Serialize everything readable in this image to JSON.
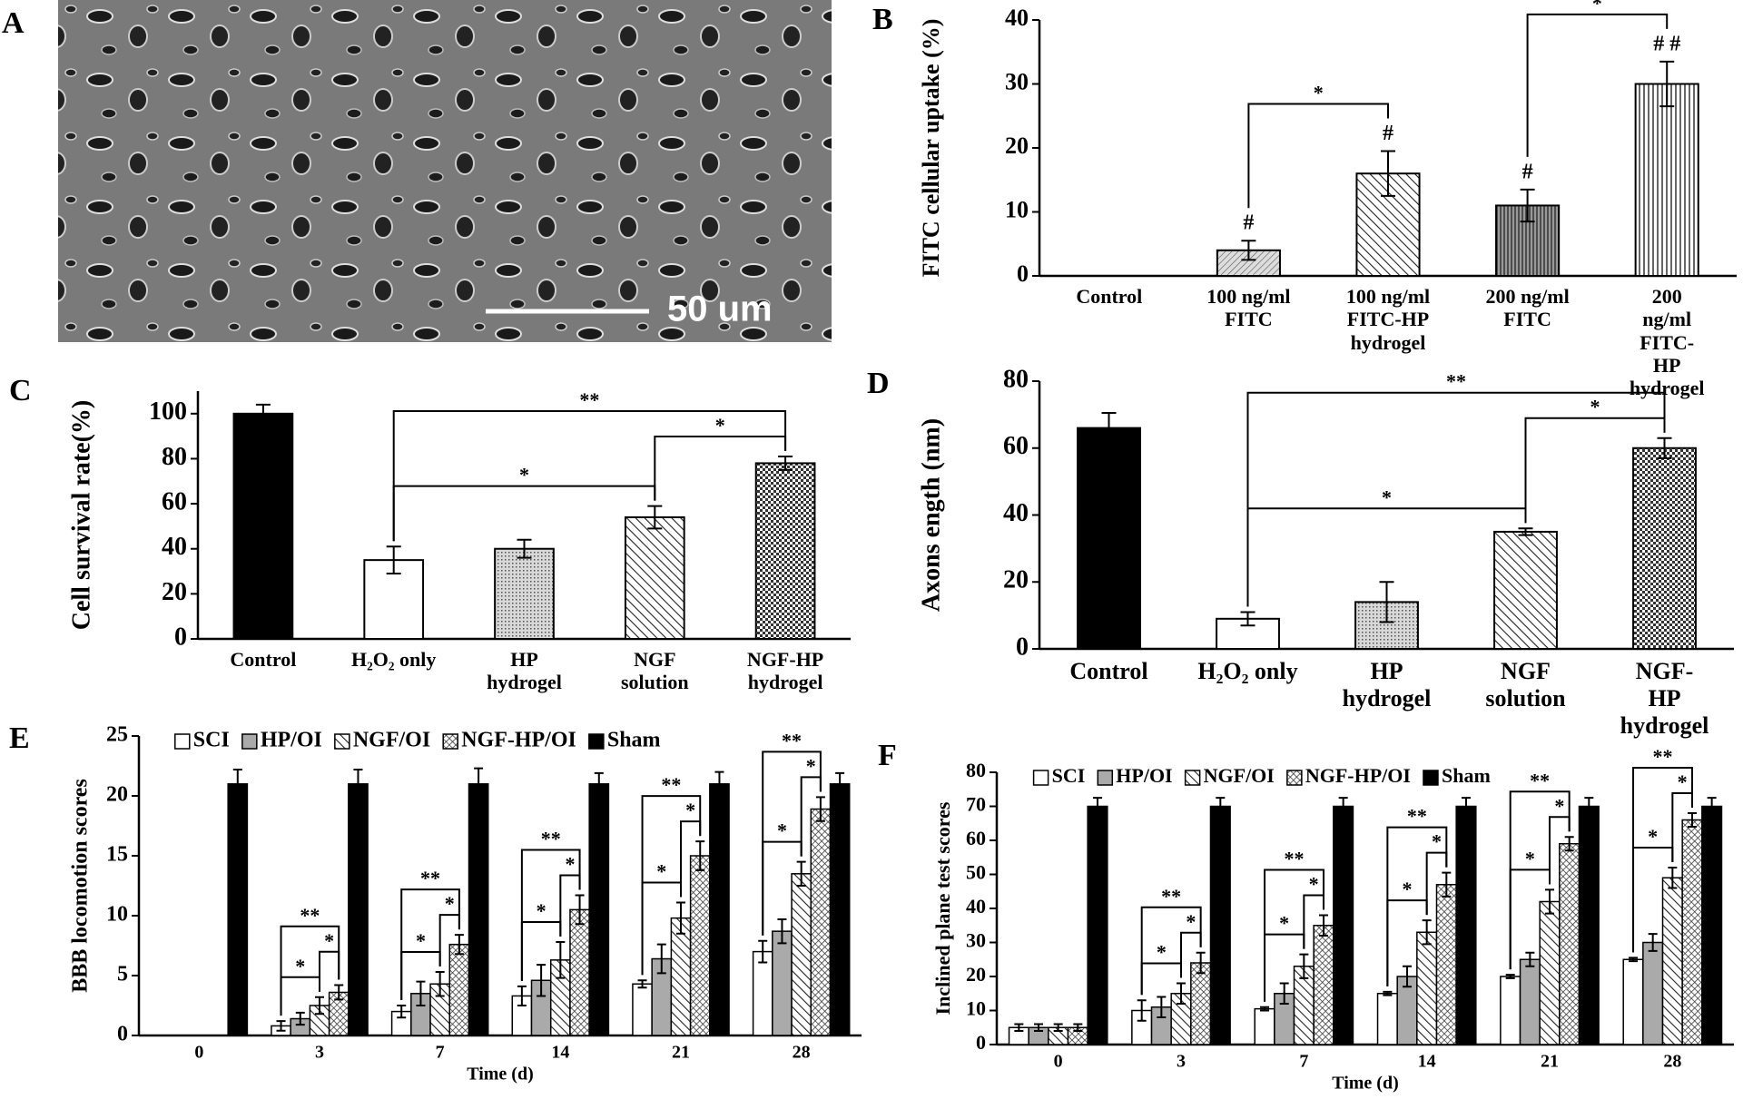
{
  "image_panel": {
    "panel_label": "A",
    "scale_bar_label": "50 um"
  },
  "chart_data": [
    {
      "type": "bar",
      "panel_label": "B",
      "y_label": "FITC cellular uptake (%)",
      "categories": [
        "Control",
        "100 ng/ml\nFITC",
        "100 ng/ml\nFITC-HP\nhydrogel",
        "200 ng/ml\nFITC",
        "200 ng/ml\nFITC-HP\nhydrogel"
      ],
      "values": [
        0,
        4,
        16,
        11,
        30
      ],
      "errors": [
        null,
        1.5,
        3.5,
        2.5,
        3.5
      ],
      "patterns": [
        "white",
        "fine-hatch",
        "diagonal",
        "vertical-dark",
        "vertical"
      ],
      "ylim": [
        0,
        40
      ],
      "yticks": [
        0,
        10,
        20,
        30,
        40
      ],
      "markers": [
        {
          "text": "#",
          "index": 1
        },
        {
          "text": "#",
          "index": 2
        },
        {
          "text": "#",
          "index": 3
        },
        {
          "text": "# #",
          "index": 4
        }
      ],
      "brackets": [
        {
          "text": "*",
          "from": 1,
          "to": 2
        },
        {
          "text": "*",
          "from": 3,
          "to": 4
        }
      ]
    },
    {
      "type": "bar",
      "panel_label": "C",
      "y_label": "Cell survival rate(%)",
      "categories": [
        "Control",
        "H₂O₂ only",
        "HP\nhydrogel",
        "NGF\nsolution",
        "NGF-HP\nhydrogel"
      ],
      "values": [
        100,
        35,
        40,
        54,
        78
      ],
      "errors": [
        4,
        6,
        4,
        5,
        3
      ],
      "patterns": [
        "black",
        "white",
        "dots",
        "diagonal",
        "checker"
      ],
      "ylim": [
        0,
        110
      ],
      "yticks": [
        0,
        20,
        40,
        60,
        80,
        100
      ],
      "brackets": [
        {
          "text": "*",
          "from": 1,
          "to": 3
        },
        {
          "text": "*",
          "from": 3,
          "to": 4
        },
        {
          "text": "**",
          "from": 1,
          "to": 4
        }
      ]
    },
    {
      "type": "bar",
      "panel_label": "D",
      "y_label": "Axons ength (nm)",
      "categories": [
        "Control",
        "H₂O₂ only",
        "HP\nhydrogel",
        "NGF\nsolution",
        "NGF-HP\nhydrogel"
      ],
      "values": [
        66,
        9,
        14,
        35,
        60
      ],
      "errors": [
        4.5,
        2,
        6,
        1,
        3
      ],
      "patterns": [
        "black",
        "white",
        "dots",
        "diagonal",
        "checker"
      ],
      "ylim": [
        0,
        80
      ],
      "yticks": [
        0,
        20,
        40,
        60,
        80
      ],
      "brackets": [
        {
          "text": "*",
          "from": 1,
          "to": 3
        },
        {
          "text": "*",
          "from": 3,
          "to": 4
        },
        {
          "text": "**",
          "from": 1,
          "to": 4
        }
      ]
    },
    {
      "type": "grouped-bar",
      "panel_label": "E",
      "y_label": "BBB locomotion scores",
      "x_label": "Time (d)",
      "categories": [
        "0",
        "3",
        "7",
        "14",
        "21",
        "28"
      ],
      "legend": "top",
      "series": [
        {
          "name": "SCI",
          "pattern": "white",
          "values": [
            0,
            0.8,
            2,
            3.3,
            4.3,
            7
          ],
          "errors": [
            null,
            0.4,
            0.5,
            0.8,
            0.3,
            0.9
          ]
        },
        {
          "name": "HP/OI",
          "pattern": "gray",
          "values": [
            0,
            1.4,
            3.5,
            4.6,
            6.4,
            8.7
          ],
          "errors": [
            null,
            0.5,
            1,
            1.3,
            1.2,
            1
          ]
        },
        {
          "name": "NGF/OI",
          "pattern": "diagonal",
          "values": [
            0,
            2.5,
            4.3,
            6.3,
            9.8,
            13.5
          ],
          "errors": [
            null,
            0.7,
            1,
            1.5,
            1.3,
            1
          ]
        },
        {
          "name": "NGF-HP/OI",
          "pattern": "crosshatch",
          "values": [
            0,
            3.6,
            7.6,
            10.5,
            15,
            18.9
          ],
          "errors": [
            null,
            0.6,
            0.8,
            1.2,
            1.2,
            1
          ]
        },
        {
          "name": "Sham",
          "pattern": "black",
          "values": [
            21,
            21,
            21,
            21,
            21,
            21
          ],
          "errors": [
            1.2,
            1.2,
            1.3,
            0.9,
            1,
            0.9
          ]
        }
      ],
      "ylim": [
        0,
        25
      ],
      "yticks": [
        0,
        5,
        10,
        15,
        20,
        25
      ],
      "brackets": [
        {
          "text": "*",
          "group": 1,
          "from": 0,
          "to": 2
        },
        {
          "text": "*",
          "group": 1,
          "from": 2,
          "to": 3
        },
        {
          "text": "**",
          "group": 1,
          "from": 0,
          "to": 3
        },
        {
          "text": "*",
          "group": 2,
          "from": 0,
          "to": 2
        },
        {
          "text": "*",
          "group": 2,
          "from": 2,
          "to": 3
        },
        {
          "text": "**",
          "group": 2,
          "from": 0,
          "to": 3
        },
        {
          "text": "*",
          "group": 3,
          "from": 0,
          "to": 2
        },
        {
          "text": "*",
          "group": 3,
          "from": 2,
          "to": 3
        },
        {
          "text": "**",
          "group": 3,
          "from": 0,
          "to": 3
        },
        {
          "text": "*",
          "group": 4,
          "from": 0,
          "to": 2
        },
        {
          "text": "*",
          "group": 4,
          "from": 2,
          "to": 3
        },
        {
          "text": "**",
          "group": 4,
          "from": 0,
          "to": 3
        },
        {
          "text": "*",
          "group": 5,
          "from": 0,
          "to": 2
        },
        {
          "text": "*",
          "group": 5,
          "from": 2,
          "to": 3
        },
        {
          "text": "**",
          "group": 5,
          "from": 0,
          "to": 3
        }
      ]
    },
    {
      "type": "grouped-bar",
      "panel_label": "F",
      "y_label": "Inclined plane test scores",
      "x_label": "Time (d)",
      "categories": [
        "0",
        "3",
        "7",
        "14",
        "21",
        "28"
      ],
      "legend": "top",
      "series": [
        {
          "name": "SCI",
          "pattern": "white",
          "values": [
            5,
            10,
            10.5,
            15,
            20,
            25
          ],
          "errors": [
            1,
            3,
            0.5,
            0.5,
            0.5,
            0.5
          ]
        },
        {
          "name": "HP/OI",
          "pattern": "gray",
          "values": [
            5,
            11,
            15,
            20,
            25,
            30
          ],
          "errors": [
            1,
            3,
            3,
            3,
            2,
            2.5
          ]
        },
        {
          "name": "NGF/OI",
          "pattern": "diagonal",
          "values": [
            5,
            15,
            23,
            33,
            42,
            49
          ],
          "errors": [
            1,
            3,
            3.5,
            3.5,
            3.5,
            3
          ]
        },
        {
          "name": "NGF-HP/OI",
          "pattern": "crosshatch",
          "values": [
            5,
            24,
            35,
            47,
            59,
            66
          ],
          "errors": [
            1,
            3,
            3,
            3.5,
            2,
            2
          ]
        },
        {
          "name": "Sham",
          "pattern": "black",
          "values": [
            70,
            70,
            70,
            70,
            70,
            70
          ],
          "errors": [
            2.5,
            2.5,
            2.5,
            2.5,
            2.5,
            2.5
          ]
        }
      ],
      "ylim": [
        0,
        80
      ],
      "yticks": [
        0,
        10,
        20,
        30,
        40,
        50,
        60,
        70,
        80
      ],
      "brackets": [
        {
          "text": "*",
          "group": 1,
          "from": 0,
          "to": 2
        },
        {
          "text": "*",
          "group": 1,
          "from": 2,
          "to": 3
        },
        {
          "text": "**",
          "group": 1,
          "from": 0,
          "to": 3
        },
        {
          "text": "*",
          "group": 2,
          "from": 0,
          "to": 2
        },
        {
          "text": "*",
          "group": 2,
          "from": 2,
          "to": 3
        },
        {
          "text": "**",
          "group": 2,
          "from": 0,
          "to": 3
        },
        {
          "text": "*",
          "group": 3,
          "from": 0,
          "to": 2
        },
        {
          "text": "*",
          "group": 3,
          "from": 2,
          "to": 3
        },
        {
          "text": "**",
          "group": 3,
          "from": 0,
          "to": 3
        },
        {
          "text": "*",
          "group": 4,
          "from": 0,
          "to": 2
        },
        {
          "text": "*",
          "group": 4,
          "from": 2,
          "to": 3
        },
        {
          "text": "**",
          "group": 4,
          "from": 0,
          "to": 3
        },
        {
          "text": "*",
          "group": 5,
          "from": 0,
          "to": 2
        },
        {
          "text": "*",
          "group": 5,
          "from": 2,
          "to": 3
        },
        {
          "text": "**",
          "group": 5,
          "from": 0,
          "to": 3
        }
      ]
    }
  ]
}
